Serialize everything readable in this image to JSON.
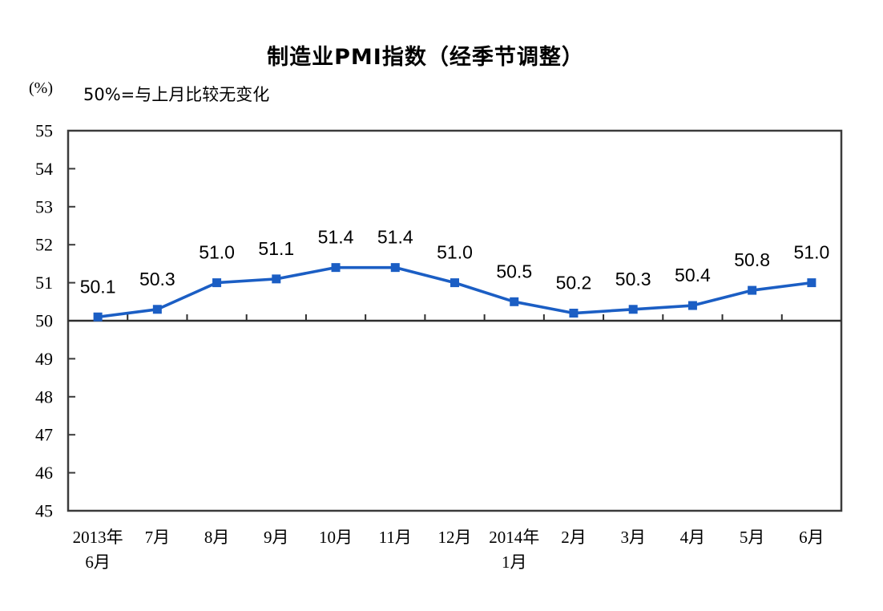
{
  "header": {
    "title": "制造业PMI指数（经季节调整）",
    "unit_label": "(%)",
    "subtitle": "50%=与上月比较无变化"
  },
  "chart_data": {
    "type": "line",
    "title": "制造业PMI指数（经季节调整）",
    "subtitle": "50%=与上月比较无变化",
    "unit": "%",
    "categories": [
      "2013年6月",
      "7月",
      "8月",
      "9月",
      "10月",
      "11月",
      "12月",
      "2014年1月",
      "2月",
      "3月",
      "4月",
      "5月",
      "6月"
    ],
    "category_lines": [
      [
        "2013年",
        "6月"
      ],
      [
        "7月"
      ],
      [
        "8月"
      ],
      [
        "9月"
      ],
      [
        "10月"
      ],
      [
        "11月"
      ],
      [
        "12月"
      ],
      [
        "2014年",
        "1月"
      ],
      [
        "2月"
      ],
      [
        "3月"
      ],
      [
        "4月"
      ],
      [
        "5月"
      ],
      [
        "6月"
      ]
    ],
    "series": [
      {
        "name": "制造业PMI指数",
        "values": [
          50.1,
          50.3,
          51.0,
          51.1,
          51.4,
          51.4,
          51.0,
          50.5,
          50.2,
          50.3,
          50.4,
          50.8,
          51.0
        ],
        "data_labels": [
          "50.1",
          "50.3",
          "51.0",
          "51.1",
          "51.4",
          "51.4",
          "51.0",
          "50.5",
          "50.2",
          "50.3",
          "50.4",
          "50.8",
          "51.0"
        ]
      }
    ],
    "ylim": [
      45,
      55
    ],
    "ytick_step": 1,
    "yticks": [
      45,
      46,
      47,
      48,
      49,
      50,
      51,
      52,
      53,
      54,
      55
    ],
    "baseline_value": 50,
    "grid": false,
    "legend_position": "none",
    "colors": {
      "series": "#1B5EC4",
      "axis": "#3B3B3B",
      "baseline": "#2E2E2E",
      "text": "#000000"
    }
  }
}
